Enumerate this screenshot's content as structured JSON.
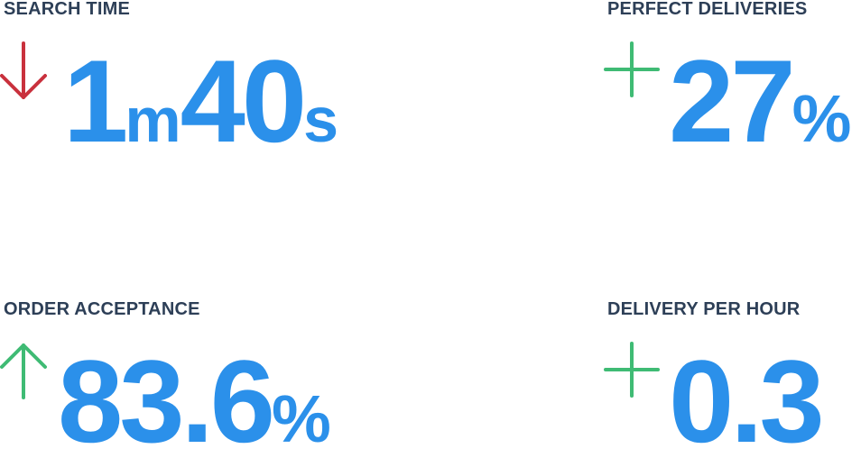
{
  "colors": {
    "label": "#2d3f57",
    "value": "#2b90ea",
    "trend_down": "#c9313d",
    "trend_up": "#3fbb74"
  },
  "stats": [
    {
      "label": "SEARCH TIME",
      "icon": "arrow-down-icon",
      "value_parts": [
        "1",
        "m",
        "40",
        "s"
      ]
    },
    {
      "label": "PERFECT DELIVERIES",
      "icon": "plus-icon",
      "value_parts": [
        "27",
        "%"
      ]
    },
    {
      "label": "ORDER ACCEPTANCE",
      "icon": "arrow-up-icon",
      "value_parts": [
        "83.6",
        "%"
      ]
    },
    {
      "label": "DELIVERY PER HOUR",
      "icon": "plus-icon",
      "value_parts": [
        "0.3"
      ]
    }
  ]
}
